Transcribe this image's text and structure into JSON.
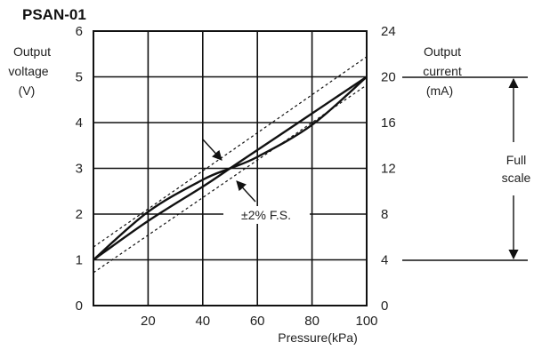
{
  "chart_data": {
    "type": "line",
    "title": "PSAN-01",
    "xlabel": "Pressure(kPa)",
    "ylabel_left": [
      "Output",
      "voltage",
      "(V)"
    ],
    "ylabel_right": [
      "Output",
      "current",
      "(mA)"
    ],
    "xlim": [
      0,
      100
    ],
    "ylim_left": [
      0,
      6
    ],
    "ylim_right": [
      0,
      24
    ],
    "x_ticks": [
      "20",
      "40",
      "60",
      "80",
      "100"
    ],
    "y_left_ticks": [
      "0",
      "1",
      "2",
      "3",
      "4",
      "5",
      "6"
    ],
    "y_right_ticks": [
      "0",
      "4",
      "8",
      "12",
      "16",
      "20",
      "24"
    ],
    "grid": true,
    "series": [
      {
        "x": [
          0,
          20,
          40,
          50,
          60,
          80,
          100
        ],
        "y": [
          1.0,
          2.05,
          2.75,
          3.0,
          3.25,
          3.95,
          5.0
        ]
      },
      {
        "x": [
          0,
          20,
          40,
          50,
          60,
          80,
          100
        ],
        "y": [
          1.0,
          1.85,
          2.6,
          3.0,
          3.4,
          4.2,
          5.0
        ]
      }
    ],
    "tolerance_band": {
      "upper": [
        [
          0,
          1.28
        ],
        [
          100,
          5.44
        ]
      ],
      "lower": [
        [
          0,
          0.72
        ],
        [
          100,
          4.82
        ]
      ]
    },
    "annotations": {
      "tolerance": "±2% F.S.",
      "full_scale": [
        "Full",
        "scale"
      ],
      "full_scale_range": [
        4,
        20
      ]
    }
  }
}
